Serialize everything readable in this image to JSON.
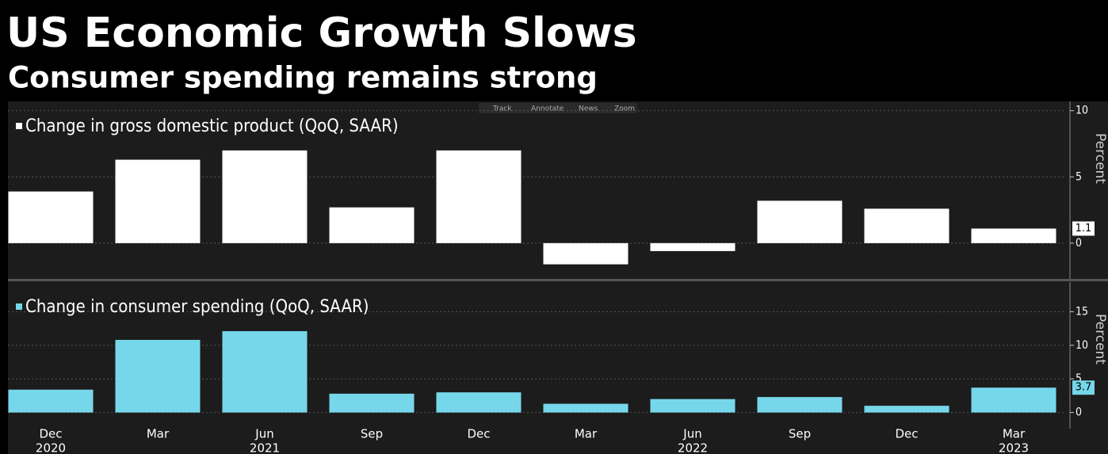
{
  "header": {
    "title": "US Economic Growth Slows",
    "subtitle": "Consumer spending remains strong"
  },
  "toolbar": [
    "Track",
    "Annotate",
    "News",
    "Zoom"
  ],
  "chart_data": [
    {
      "type": "bar",
      "legend": "Change in gross domestic product (QoQ, SAAR)",
      "color": "#ffffff",
      "values": [
        3.9,
        6.3,
        7.0,
        2.7,
        7.0,
        -1.6,
        -0.6,
        3.2,
        2.6,
        1.1
      ],
      "ylim": [
        -2.7,
        10.7
      ],
      "yticks": [
        0,
        5,
        10
      ],
      "y_label": "Percent",
      "grid": true
    },
    {
      "type": "bar",
      "legend": "Change in consumer spending (QoQ, SAAR)",
      "color": "#76d7ea",
      "categories": [
        "Dec",
        "Mar",
        "Jun",
        "Sep",
        "Dec",
        "Mar",
        "Jun",
        "Sep",
        "Dec",
        "Mar"
      ],
      "years": [
        "2020",
        null,
        "2021",
        null,
        null,
        null,
        "2022",
        null,
        null,
        "2023"
      ],
      "values": [
        3.4,
        10.8,
        12.1,
        2.8,
        3.0,
        1.3,
        2.0,
        2.3,
        1.0,
        3.7
      ],
      "ylim": [
        -2.4,
        19.4
      ],
      "yticks": [
        0,
        5,
        10,
        15
      ],
      "y_label": "Percent",
      "grid": true
    }
  ]
}
